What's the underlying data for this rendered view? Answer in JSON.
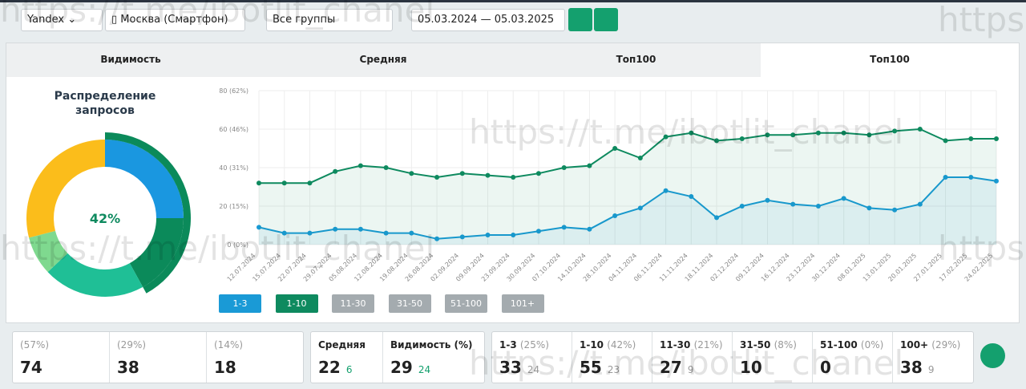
{
  "toolbar": {
    "engine": "Yandex",
    "region": "Москва (Смартфон)",
    "group": "Все группы",
    "date_range": "05.03.2024 — 05.03.2025"
  },
  "tabs": [
    "Видимость",
    "Средняя",
    "Топ100",
    "Топ100"
  ],
  "watermark": "https://t.me/ibotlit_chanel",
  "chart_data": [
    {
      "type": "pie",
      "title": "Распределение запросов",
      "center_label": "42%",
      "values": [
        25,
        17,
        21,
        8,
        29
      ],
      "colors": [
        "#1a97e0",
        "#0b8a5a",
        "#1fbf96",
        "#7fd98f",
        "#fbbd1b"
      ],
      "outer_value": 42,
      "outer_color": "#0b8a5a"
    },
    {
      "type": "line",
      "x": [
        "12.07.2024",
        "15.07.2024",
        "22.07.2024",
        "29.07.2024",
        "05.08.2024",
        "12.08.2024",
        "19.08.2024",
        "26.08.2024",
        "02.09.2024",
        "09.09.2024",
        "23.09.2024",
        "30.09.2024",
        "07.10.2024",
        "14.10.2024",
        "28.10.2024",
        "04.11.2024",
        "06.11.2024",
        "11.11.2024",
        "18.11.2024",
        "02.12.2024",
        "09.12.2024",
        "16.12.2024",
        "23.12.2024",
        "30.12.2024",
        "08.01.2025",
        "13.01.2025",
        "20.01.2025",
        "27.01.2025",
        "17.02.2025",
        "24.02.2025"
      ],
      "ylim": [
        0,
        80
      ],
      "yticks": [
        {
          "value": 0,
          "label": "0 (0%)"
        },
        {
          "value": 20,
          "label": "20 (15%)"
        },
        {
          "value": 40,
          "label": "40 (31%)"
        },
        {
          "value": 60,
          "label": "60 (46%)"
        },
        {
          "value": 80,
          "label": "80 (62%)"
        }
      ],
      "grid": true,
      "series": [
        {
          "name": "1-3",
          "color": "#1a9ad6",
          "values": [
            9,
            6,
            6,
            8,
            8,
            6,
            6,
            3,
            4,
            5,
            5,
            7,
            9,
            8,
            15,
            19,
            28,
            25,
            14,
            20,
            23,
            21,
            20,
            24,
            19,
            18,
            21,
            35,
            35,
            33
          ]
        },
        {
          "name": "1-10",
          "color": "#0e8a5f",
          "values": [
            32,
            32,
            32,
            38,
            41,
            40,
            37,
            35,
            37,
            36,
            35,
            37,
            40,
            41,
            50,
            45,
            56,
            58,
            54,
            55,
            57,
            57,
            58,
            58,
            57,
            59,
            60,
            54,
            55,
            55
          ]
        }
      ],
      "inactive_series": [
        "11-30",
        "31-50",
        "51-100",
        "101+"
      ]
    }
  ],
  "stats": {
    "positions": [
      {
        "share": "(57%)",
        "value": 74
      },
      {
        "share": "(29%)",
        "value": 38
      },
      {
        "share": "(14%)",
        "value": 18
      }
    ],
    "average": {
      "label": "Средняя",
      "value": 22,
      "delta": 6
    },
    "visibility": {
      "label": "Видимость (%)",
      "value": 29,
      "delta": 24
    },
    "ranges": [
      {
        "label": "1-3",
        "share": "(25%)",
        "value": 33,
        "delta": 24
      },
      {
        "label": "1-10",
        "share": "(42%)",
        "value": 55,
        "delta": 23
      },
      {
        "label": "11-30",
        "share": "(21%)",
        "value": 27,
        "delta": 9
      },
      {
        "label": "31-50",
        "share": "(8%)",
        "value": 10
      },
      {
        "label": "51-100",
        "share": "(0%)",
        "value": 0
      },
      {
        "label": "100+",
        "share": "(29%)",
        "value": 38,
        "delta": 9
      }
    ]
  }
}
